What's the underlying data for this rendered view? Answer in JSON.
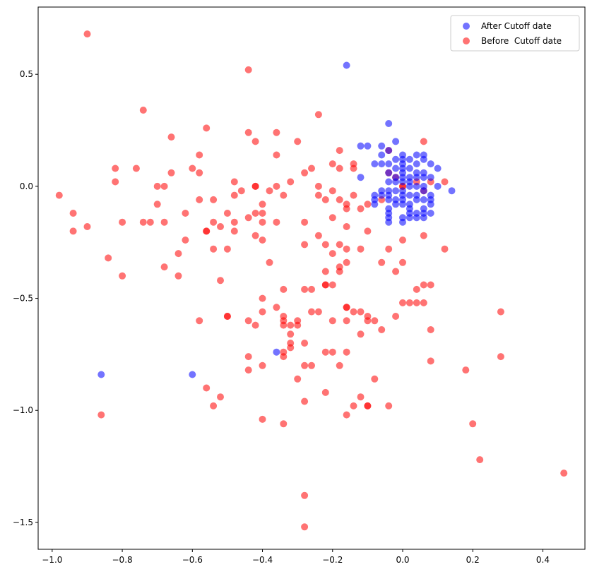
{
  "chart_data": {
    "type": "scatter",
    "title": "",
    "xlabel": "",
    "ylabel": "",
    "xlim": [
      -1.04,
      0.52
    ],
    "ylim": [
      -1.62,
      0.8
    ],
    "x_ticks": [
      -1.0,
      -0.8,
      -0.6,
      -0.4,
      -0.2,
      0.0,
      0.2,
      0.4
    ],
    "x_tick_labels": [
      "−1.0",
      "−0.8",
      "−0.6",
      "−0.4",
      "−0.2",
      "0.0",
      "0.2",
      "0.4"
    ],
    "y_ticks": [
      0.5,
      0.0,
      -0.5,
      -1.0,
      -1.5
    ],
    "y_tick_labels": [
      "0.5",
      "0.0",
      "−0.5",
      "−1.0",
      "−1.5"
    ],
    "grid": false,
    "legend_position": "top-right",
    "series": [
      {
        "name": "After Cutoff date",
        "color": "#0000ff",
        "alpha": 0.55,
        "points": [
          [
            -0.16,
            0.54
          ],
          [
            -0.04,
            0.28
          ],
          [
            -0.02,
            0.2
          ],
          [
            -0.12,
            0.18
          ],
          [
            -0.1,
            0.18
          ],
          [
            -0.06,
            0.18
          ],
          [
            -0.06,
            0.14
          ],
          [
            -0.04,
            0.16
          ],
          [
            0.0,
            0.14
          ],
          [
            0.04,
            0.14
          ],
          [
            0.06,
            0.14
          ],
          [
            -0.02,
            0.12
          ],
          [
            0.0,
            0.12
          ],
          [
            0.02,
            0.12
          ],
          [
            0.06,
            0.12
          ],
          [
            -0.08,
            0.1
          ],
          [
            -0.06,
            0.1
          ],
          [
            -0.04,
            0.1
          ],
          [
            0.0,
            0.1
          ],
          [
            0.04,
            0.1
          ],
          [
            0.08,
            0.1
          ],
          [
            0.1,
            0.08
          ],
          [
            -0.12,
            0.04
          ],
          [
            -0.02,
            0.08
          ],
          [
            0.0,
            0.08
          ],
          [
            0.02,
            0.08
          ],
          [
            0.04,
            0.06
          ],
          [
            0.06,
            0.06
          ],
          [
            0.08,
            0.04
          ],
          [
            0.06,
            0.04
          ],
          [
            -0.04,
            0.06
          ],
          [
            -0.02,
            0.04
          ],
          [
            0.0,
            0.04
          ],
          [
            0.02,
            0.04
          ],
          [
            0.04,
            0.04
          ],
          [
            0.0,
            0.06
          ],
          [
            0.02,
            0.02
          ],
          [
            -0.04,
            0.02
          ],
          [
            -0.02,
            0.02
          ],
          [
            0.0,
            0.02
          ],
          [
            0.02,
            0.0
          ],
          [
            0.04,
            0.0
          ],
          [
            0.06,
            0.0
          ],
          [
            0.1,
            0.0
          ],
          [
            0.14,
            -0.02
          ],
          [
            -0.06,
            -0.02
          ],
          [
            -0.04,
            -0.02
          ],
          [
            -0.02,
            -0.02
          ],
          [
            0.0,
            -0.02
          ],
          [
            0.06,
            -0.02
          ],
          [
            -0.08,
            -0.04
          ],
          [
            -0.06,
            -0.04
          ],
          [
            -0.04,
            -0.04
          ],
          [
            0.0,
            -0.04
          ],
          [
            0.02,
            -0.04
          ],
          [
            0.04,
            -0.04
          ],
          [
            0.08,
            -0.04
          ],
          [
            -0.08,
            -0.06
          ],
          [
            -0.04,
            -0.06
          ],
          [
            -0.02,
            -0.06
          ],
          [
            0.0,
            -0.06
          ],
          [
            0.04,
            -0.06
          ],
          [
            0.06,
            -0.06
          ],
          [
            0.08,
            -0.06
          ],
          [
            -0.08,
            -0.08
          ],
          [
            -0.02,
            -0.08
          ],
          [
            0.0,
            -0.08
          ],
          [
            0.02,
            -0.08
          ],
          [
            0.08,
            -0.08
          ],
          [
            -0.04,
            -0.1
          ],
          [
            0.02,
            -0.1
          ],
          [
            0.06,
            -0.1
          ],
          [
            0.04,
            -0.12
          ],
          [
            -0.04,
            -0.12
          ],
          [
            0.02,
            -0.12
          ],
          [
            0.06,
            -0.12
          ],
          [
            0.08,
            -0.12
          ],
          [
            -0.04,
            -0.14
          ],
          [
            0.0,
            -0.14
          ],
          [
            0.02,
            -0.14
          ],
          [
            0.04,
            -0.14
          ],
          [
            0.06,
            -0.14
          ],
          [
            -0.04,
            -0.16
          ],
          [
            0.0,
            -0.16
          ],
          [
            -0.36,
            -0.74
          ],
          [
            -0.86,
            -0.84
          ],
          [
            -0.6,
            -0.84
          ]
        ]
      },
      {
        "name": "Before  Cutoff date",
        "color": "#ff0000",
        "alpha": 0.55,
        "points": [
          [
            -0.9,
            0.68
          ],
          [
            -0.44,
            0.52
          ],
          [
            -0.74,
            0.34
          ],
          [
            -0.24,
            0.32
          ],
          [
            -0.56,
            0.26
          ],
          [
            -0.66,
            0.22
          ],
          [
            -0.44,
            0.24
          ],
          [
            -0.36,
            0.24
          ],
          [
            -0.42,
            0.2
          ],
          [
            -0.3,
            0.2
          ],
          [
            -0.18,
            0.16
          ],
          [
            -0.04,
            0.16
          ],
          [
            0.06,
            0.2
          ],
          [
            -0.58,
            0.14
          ],
          [
            -0.36,
            0.14
          ],
          [
            -0.82,
            0.08
          ],
          [
            -0.76,
            0.08
          ],
          [
            -0.6,
            0.08
          ],
          [
            -0.26,
            0.08
          ],
          [
            -0.2,
            0.1
          ],
          [
            -0.14,
            0.1
          ],
          [
            -0.14,
            0.08
          ],
          [
            -0.18,
            0.08
          ],
          [
            -0.66,
            0.06
          ],
          [
            -0.58,
            0.06
          ],
          [
            -0.28,
            0.06
          ],
          [
            -0.02,
            0.04
          ],
          [
            -0.04,
            0.06
          ],
          [
            -0.82,
            0.02
          ],
          [
            -0.48,
            0.02
          ],
          [
            -0.32,
            0.02
          ],
          [
            0.04,
            0.02
          ],
          [
            0.08,
            0.02
          ],
          [
            0.12,
            0.02
          ],
          [
            -0.7,
            0.0
          ],
          [
            -0.68,
            0.0
          ],
          [
            -0.42,
            0.0
          ],
          [
            -0.42,
            0.0
          ],
          [
            -0.36,
            0.0
          ],
          [
            -0.24,
            0.0
          ],
          [
            0.0,
            0.0
          ],
          [
            0.0,
            0.0
          ],
          [
            -0.46,
            -0.02
          ],
          [
            -0.38,
            -0.02
          ],
          [
            -0.2,
            -0.02
          ],
          [
            0.06,
            -0.02
          ],
          [
            -0.98,
            -0.04
          ],
          [
            -0.48,
            -0.04
          ],
          [
            -0.34,
            -0.04
          ],
          [
            -0.24,
            -0.04
          ],
          [
            -0.14,
            -0.04
          ],
          [
            -0.58,
            -0.06
          ],
          [
            -0.54,
            -0.06
          ],
          [
            -0.22,
            -0.06
          ],
          [
            -0.18,
            -0.06
          ],
          [
            -0.06,
            -0.06
          ],
          [
            -0.7,
            -0.08
          ],
          [
            -0.4,
            -0.08
          ],
          [
            -0.16,
            -0.08
          ],
          [
            -0.1,
            -0.08
          ],
          [
            -0.16,
            -0.1
          ],
          [
            -0.12,
            -0.1
          ],
          [
            -0.94,
            -0.12
          ],
          [
            -0.62,
            -0.12
          ],
          [
            -0.5,
            -0.12
          ],
          [
            -0.42,
            -0.12
          ],
          [
            -0.4,
            -0.12
          ],
          [
            -0.44,
            -0.14
          ],
          [
            -0.2,
            -0.14
          ],
          [
            -0.8,
            -0.16
          ],
          [
            -0.74,
            -0.16
          ],
          [
            -0.72,
            -0.16
          ],
          [
            -0.68,
            -0.16
          ],
          [
            -0.54,
            -0.16
          ],
          [
            -0.48,
            -0.16
          ],
          [
            -0.4,
            -0.16
          ],
          [
            -0.36,
            -0.16
          ],
          [
            -0.28,
            -0.16
          ],
          [
            -0.9,
            -0.18
          ],
          [
            -0.52,
            -0.18
          ],
          [
            -0.16,
            -0.18
          ],
          [
            -0.94,
            -0.2
          ],
          [
            -0.56,
            -0.2
          ],
          [
            -0.56,
            -0.2
          ],
          [
            -0.48,
            -0.2
          ],
          [
            -0.1,
            -0.2
          ],
          [
            -0.42,
            -0.22
          ],
          [
            -0.24,
            -0.22
          ],
          [
            0.06,
            -0.22
          ],
          [
            -0.62,
            -0.24
          ],
          [
            -0.4,
            -0.24
          ],
          [
            0.0,
            -0.24
          ],
          [
            -0.28,
            -0.26
          ],
          [
            -0.22,
            -0.26
          ],
          [
            -0.18,
            -0.26
          ],
          [
            -0.54,
            -0.28
          ],
          [
            -0.5,
            -0.28
          ],
          [
            -0.16,
            -0.28
          ],
          [
            -0.12,
            -0.28
          ],
          [
            -0.04,
            -0.28
          ],
          [
            0.12,
            -0.28
          ],
          [
            -0.64,
            -0.3
          ],
          [
            -0.2,
            -0.3
          ],
          [
            -0.84,
            -0.32
          ],
          [
            -0.38,
            -0.34
          ],
          [
            -0.06,
            -0.34
          ],
          [
            0.0,
            -0.34
          ],
          [
            -0.16,
            -0.34
          ],
          [
            -0.68,
            -0.36
          ],
          [
            -0.18,
            -0.36
          ],
          [
            -0.22,
            -0.38
          ],
          [
            -0.18,
            -0.38
          ],
          [
            -0.02,
            -0.38
          ],
          [
            -0.8,
            -0.4
          ],
          [
            -0.64,
            -0.4
          ],
          [
            -0.52,
            -0.42
          ],
          [
            -0.22,
            -0.44
          ],
          [
            -0.22,
            -0.44
          ],
          [
            -0.2,
            -0.44
          ],
          [
            0.06,
            -0.44
          ],
          [
            0.08,
            -0.44
          ],
          [
            -0.34,
            -0.46
          ],
          [
            -0.28,
            -0.46
          ],
          [
            -0.26,
            -0.46
          ],
          [
            0.04,
            -0.46
          ],
          [
            -0.4,
            -0.5
          ],
          [
            0.0,
            -0.52
          ],
          [
            0.02,
            -0.52
          ],
          [
            0.04,
            -0.52
          ],
          [
            0.06,
            -0.52
          ],
          [
            -0.36,
            -0.54
          ],
          [
            -0.16,
            -0.54
          ],
          [
            -0.16,
            -0.54
          ],
          [
            -0.4,
            -0.56
          ],
          [
            -0.26,
            -0.56
          ],
          [
            -0.24,
            -0.56
          ],
          [
            -0.14,
            -0.56
          ],
          [
            -0.12,
            -0.56
          ],
          [
            0.28,
            -0.56
          ],
          [
            -0.5,
            -0.58
          ],
          [
            -0.5,
            -0.58
          ],
          [
            -0.34,
            -0.58
          ],
          [
            -0.1,
            -0.58
          ],
          [
            -0.02,
            -0.58
          ],
          [
            -0.58,
            -0.6
          ],
          [
            -0.44,
            -0.6
          ],
          [
            -0.34,
            -0.6
          ],
          [
            -0.3,
            -0.6
          ],
          [
            -0.2,
            -0.6
          ],
          [
            -0.16,
            -0.6
          ],
          [
            -0.1,
            -0.6
          ],
          [
            -0.08,
            -0.6
          ],
          [
            -0.42,
            -0.62
          ],
          [
            -0.34,
            -0.62
          ],
          [
            -0.32,
            -0.62
          ],
          [
            -0.3,
            -0.62
          ],
          [
            -0.06,
            -0.64
          ],
          [
            0.08,
            -0.64
          ],
          [
            -0.32,
            -0.66
          ],
          [
            -0.12,
            -0.66
          ],
          [
            -0.32,
            -0.7
          ],
          [
            -0.28,
            -0.7
          ],
          [
            -0.32,
            -0.72
          ],
          [
            -0.34,
            -0.74
          ],
          [
            -0.22,
            -0.74
          ],
          [
            -0.2,
            -0.74
          ],
          [
            -0.16,
            -0.74
          ],
          [
            -0.44,
            -0.76
          ],
          [
            -0.34,
            -0.76
          ],
          [
            0.28,
            -0.76
          ],
          [
            0.08,
            -0.78
          ],
          [
            -0.4,
            -0.8
          ],
          [
            -0.28,
            -0.8
          ],
          [
            -0.26,
            -0.8
          ],
          [
            -0.18,
            -0.8
          ],
          [
            -0.44,
            -0.82
          ],
          [
            0.18,
            -0.82
          ],
          [
            -0.3,
            -0.86
          ],
          [
            -0.08,
            -0.86
          ],
          [
            -0.56,
            -0.9
          ],
          [
            -0.22,
            -0.92
          ],
          [
            -0.52,
            -0.94
          ],
          [
            -0.12,
            -0.94
          ],
          [
            -0.28,
            -0.96
          ],
          [
            -0.54,
            -0.98
          ],
          [
            -0.14,
            -0.98
          ],
          [
            -0.1,
            -0.98
          ],
          [
            -0.1,
            -0.98
          ],
          [
            -0.04,
            -0.98
          ],
          [
            -0.86,
            -1.02
          ],
          [
            -0.16,
            -1.02
          ],
          [
            -0.4,
            -1.04
          ],
          [
            -0.34,
            -1.06
          ],
          [
            0.2,
            -1.06
          ],
          [
            0.22,
            -1.22
          ],
          [
            0.46,
            -1.28
          ],
          [
            -0.28,
            -1.38
          ],
          [
            -0.28,
            -1.52
          ]
        ]
      }
    ]
  }
}
